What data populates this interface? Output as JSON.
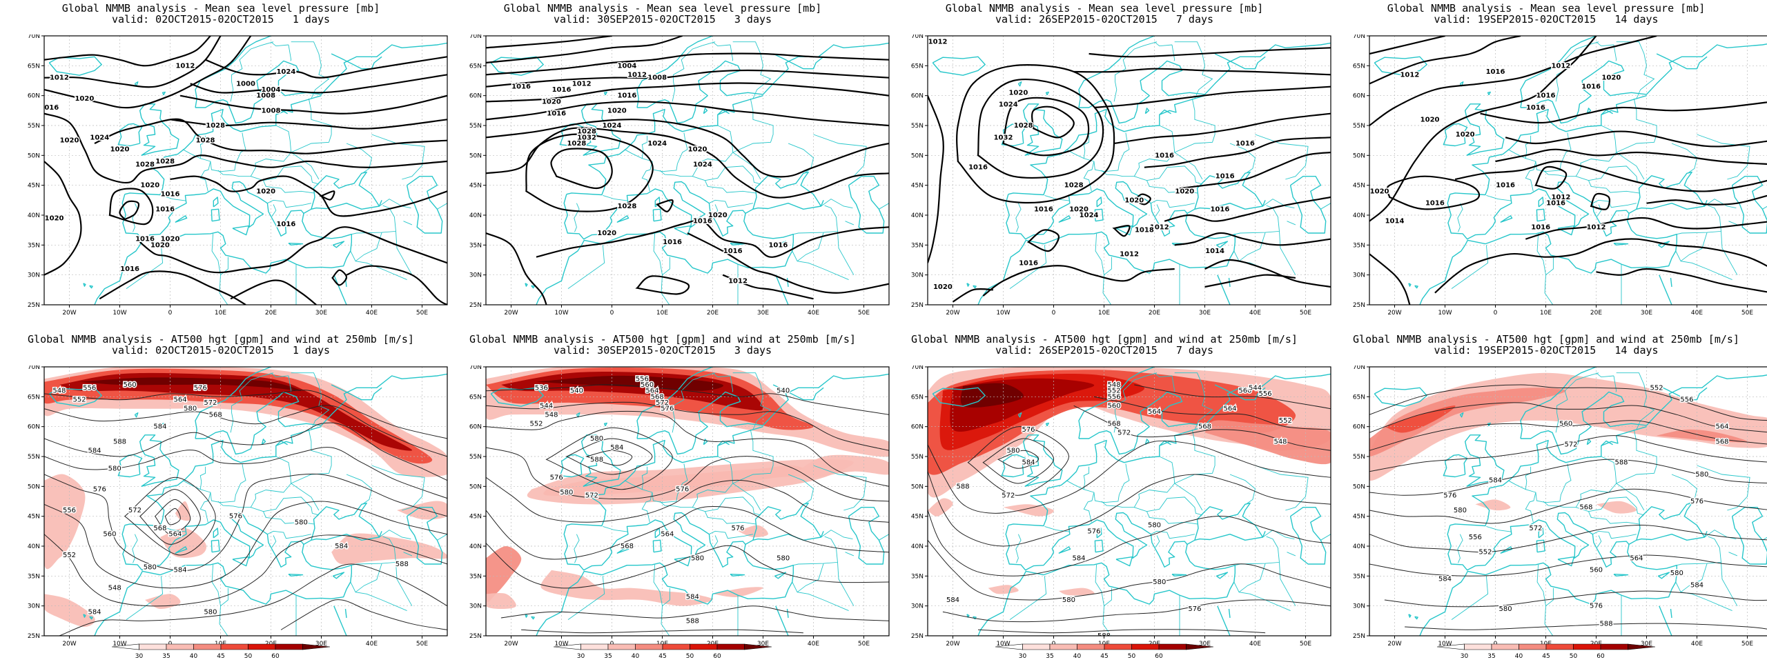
{
  "panels": [
    {
      "title": "Global NMMB analysis - Mean sea level pressure [mb]",
      "valid": "valid: 02OCT2015-02OCT2015   1 days",
      "type": "mslp",
      "variant": 0,
      "contour_labels": [
        "1012",
        "1020",
        "1016",
        "1020",
        "1020",
        "1024",
        "1028",
        "1028",
        "1020",
        "1020",
        "1016",
        "1016",
        "1016",
        "1020",
        "1020",
        "1028",
        "1000",
        "1004",
        "1008",
        "1008",
        "1012",
        "1024",
        "1028",
        "1016",
        "1020",
        "1016"
      ]
    },
    {
      "title": "Global NMMB analysis - Mean sea level pressure [mb]",
      "valid": "valid: 30SEP2015-02OCT2015   3 days",
      "type": "mslp",
      "variant": 1,
      "contour_labels": [
        "1016",
        "1012",
        "1016",
        "1020",
        "1016",
        "1004",
        "1008",
        "1012",
        "1016",
        "1020",
        "1024",
        "1028",
        "1032",
        "1028",
        "1024",
        "1020",
        "1024",
        "1020",
        "1016",
        "1016",
        "1016",
        "1016",
        "1012",
        "1020",
        "1028"
      ]
    },
    {
      "title": "Global NMMB analysis - Mean sea level pressure [mb]",
      "valid": "valid: 26SEP2015-02OCT2015   7 days",
      "type": "mslp",
      "variant": 2,
      "contour_labels": [
        "1012",
        "1020",
        "1024",
        "1028",
        "1032",
        "1016",
        "1012",
        "1016",
        "1020",
        "1028",
        "1024",
        "1020",
        "1020",
        "1016",
        "1016",
        "1016",
        "1016",
        "1018",
        "1012",
        "1014",
        "1016",
        "1020"
      ]
    },
    {
      "title": "Global NMMB analysis - Mean sea level pressure [mb]",
      "valid": "valid: 19SEP2015-02OCT2015   14 days",
      "type": "mslp",
      "variant": 3,
      "contour_labels": [
        "1012",
        "1016",
        "1012",
        "1016",
        "1020",
        "1016",
        "1020",
        "1016",
        "1020",
        "1020",
        "1016",
        "1014",
        "1016",
        "1012",
        "1016",
        "1016",
        "1012"
      ]
    },
    {
      "title": "Global NMMB analysis - AT500 hgt [gpm] and wind at 250mb [m/s]",
      "valid": "valid: 02OCT2015-02OCT2015   1 days",
      "type": "z500",
      "variant": 0,
      "contour_labels": [
        "548",
        "552",
        "556",
        "560",
        "564",
        "568",
        "572",
        "576",
        "580",
        "584",
        "588",
        "584",
        "580",
        "576",
        "572",
        "568",
        "564",
        "560",
        "556",
        "552",
        "548",
        "584",
        "580",
        "576",
        "580",
        "584",
        "588",
        "584",
        "580"
      ]
    },
    {
      "title": "Global NMMB analysis - AT500 hgt [gpm] and wind at 250mb [m/s]",
      "valid": "valid: 30SEP2015-02OCT2015   3 days",
      "type": "z500",
      "variant": 1,
      "contour_labels": [
        "536",
        "540",
        "544",
        "548",
        "552",
        "556",
        "560",
        "564",
        "568",
        "572",
        "576",
        "580",
        "584",
        "588",
        "576",
        "580",
        "572",
        "568",
        "564",
        "540",
        "576",
        "580",
        "584",
        "588",
        "576",
        "580"
      ]
    },
    {
      "title": "Global NMMB analysis - AT500 hgt [gpm] and wind at 250mb [m/s]",
      "valid": "valid: 26SEP2015-02OCT2015   7 days",
      "type": "z500",
      "variant": 2,
      "contour_labels": [
        "548",
        "552",
        "556",
        "560",
        "564",
        "568",
        "572",
        "576",
        "580",
        "584",
        "588",
        "580",
        "576",
        "572",
        "568",
        "564",
        "560",
        "556",
        "552",
        "548",
        "544",
        "584",
        "580",
        "576",
        "580",
        "584",
        "588"
      ]
    },
    {
      "title": "Global NMMB analysis - AT500 hgt [gpm] and wind at 250mb [m/s]",
      "valid": "valid: 19SEP2015-02OCT2015   14 days",
      "type": "z500",
      "variant": 3,
      "contour_labels": [
        "552",
        "556",
        "560",
        "564",
        "568",
        "572",
        "576",
        "580",
        "584",
        "588",
        "580",
        "576",
        "572",
        "568",
        "564",
        "560",
        "556",
        "552",
        "584",
        "580",
        "576",
        "580",
        "584",
        "588"
      ]
    }
  ],
  "axes": {
    "lat_labels": [
      "70N",
      "65N",
      "60N",
      "55N",
      "50N",
      "45N",
      "40N",
      "35N",
      "30N",
      "25N"
    ],
    "lon_labels": [
      "20W",
      "10W",
      "0",
      "10E",
      "20E",
      "30E",
      "40E",
      "50E"
    ]
  },
  "colorbar": {
    "ticks": [
      "30",
      "35",
      "40",
      "45",
      "50",
      "60"
    ],
    "colors": [
      "#ffffff",
      "#fde0dc",
      "#f9bcb4",
      "#f48c80",
      "#ee4b3a",
      "#d91408",
      "#a40000",
      "#6b0000"
    ]
  },
  "colors": {
    "coast": "#26c6ca",
    "grid": "#bbbbbb",
    "contour": "#000000"
  }
}
